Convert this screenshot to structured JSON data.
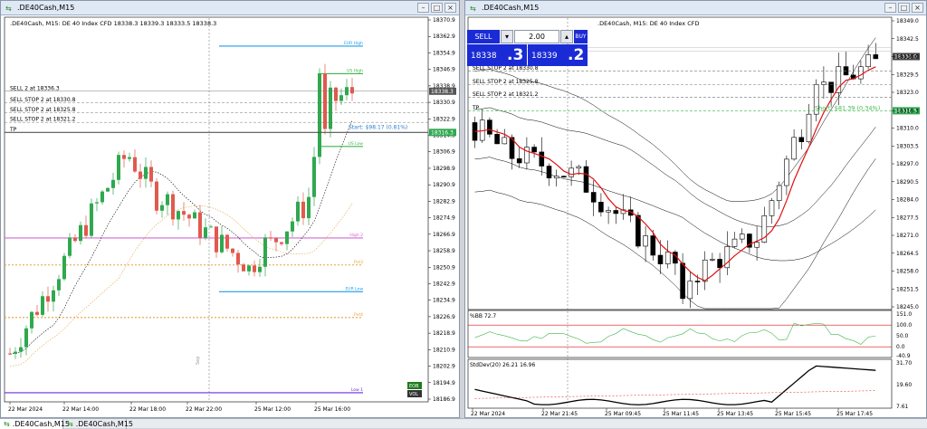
{
  "left_window": {
    "title": ".DE40Cash,M15",
    "info": ".DE40Cash, M15:  DE 40 Index CFD  18338.3 18339.3 18333.5 18338.3",
    "price_ticks": [
      "18370.9",
      "18362.9",
      "18354.9",
      "18346.9",
      "18338.9",
      "18330.9",
      "18322.9",
      "18314.9",
      "18306.9",
      "18298.9",
      "18290.9",
      "18282.9",
      "18274.9",
      "18266.9",
      "18258.9",
      "18250.9",
      "18242.9",
      "18234.9",
      "18226.9",
      "18218.9",
      "18210.9",
      "18202.9",
      "18194.9",
      "18186.9"
    ],
    "time_ticks": [
      "22 Mar 2024",
      "22 Mar 14:00",
      "22 Mar 18:00",
      "22 Mar 22:00",
      "25 Mar 12:00",
      "25 Mar 16:00"
    ],
    "orders": [
      "SELL 2 at 18336.3",
      "SELL STOP 2 at 18330.8",
      "SELL STOP 2 at 18325.8",
      "SELL STOP 2 at 18321.2",
      "TP"
    ],
    "level_labels": [
      "EUR High",
      "US High",
      "US Low",
      "High 2",
      "Pvt3",
      "EUR Low",
      "Pvt4",
      "Low 1"
    ],
    "profit_label": "Start: $98.17 (0.81%)",
    "current_price": "18338.3",
    "tp_price": "18316.3",
    "session_label": "Sep",
    "legend": [
      "EOB",
      "VOL"
    ]
  },
  "right_window": {
    "title": ".DE40Cash,M15",
    "info": ".DE40Cash, M15:  DE 40 Index CFD",
    "trade_panel": {
      "sell_label": "SELL",
      "buy_label": "BUY",
      "lot": "2.00",
      "sell_price_small": "18338",
      "sell_price_big": ".3",
      "buy_price_small": "18339",
      "buy_price_big": ".2"
    },
    "orders": [
      "SELL STOP 2 at 18330.8",
      "SELL STOP 2 at 18325.8",
      "SELL STOP 2 at 18321.2",
      "TP"
    ],
    "short_label": "Short: $81.39 (0.34%)",
    "price_ticks": [
      "18349.0",
      "18342.5",
      "18336.0",
      "18329.5",
      "18323.0",
      "18316.3",
      "18310.0",
      "18303.5",
      "18297.0",
      "18290.5",
      "18284.0",
      "18277.5",
      "18271.0",
      "18264.5",
      "18258.0",
      "18251.5",
      "18245.0"
    ],
    "current_price": "18336.0",
    "tp_price": "18316.3",
    "bb_indicator": {
      "label": "%BB 72.7",
      "ticks": [
        "151.0",
        "100.0",
        "50.0",
        "0.0",
        "-40.9"
      ]
    },
    "stddev_indicator": {
      "label": "StdDev(20) 26.21 16.96",
      "ticks": [
        "31.70",
        "19.60",
        "7.61"
      ]
    },
    "time_ticks": [
      "22 Mar 2024",
      "22 Mar 21:45",
      "25 Mar 09:45",
      "25 Mar 11:45",
      "25 Mar 13:45",
      "25 Mar 15:45",
      "25 Mar 17:45"
    ]
  },
  "tabs": [
    ".DE40Cash,M15",
    ".DE40Cash,M15"
  ],
  "colors": {
    "bull": "#2fa84f",
    "bear": "#e05a4e",
    "eur": "#1e9ee6",
    "us": "#3cb84a",
    "pink": "#d06ad0",
    "orange": "#e3a33c",
    "purple": "#6a2bd9",
    "blue_panel": "#1a2bd6"
  }
}
